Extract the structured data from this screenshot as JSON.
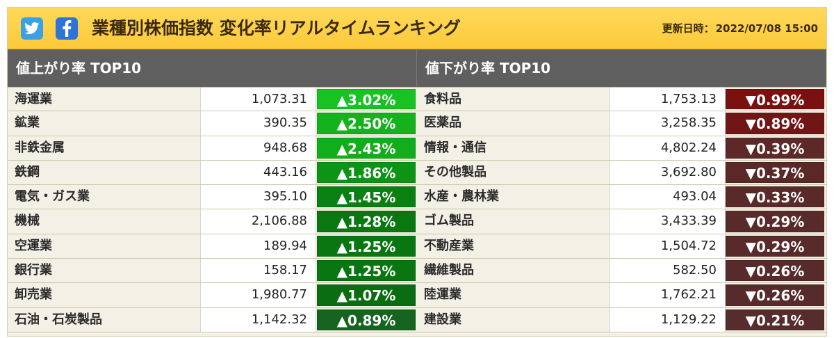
{
  "header": {
    "title": "業種別株価指数 変化率リアルタイムランキング",
    "updated_label": "更新日時：",
    "updated_value": "2022/07/08 15:00",
    "twitter_icon": "twitter-icon",
    "facebook_icon": "facebook-icon"
  },
  "gainers": {
    "title": "値上がり率 TOP10",
    "rows": [
      {
        "name": "海運業",
        "value": "1,073.31",
        "change": "▲3.02%",
        "color": "#17c222"
      },
      {
        "name": "鉱業",
        "value": "390.35",
        "change": "▲2.50%",
        "color": "#14b21c"
      },
      {
        "name": "非鉄金属",
        "value": "948.68",
        "change": "▲2.43%",
        "color": "#12ad1a"
      },
      {
        "name": "鉄鋼",
        "value": "443.16",
        "change": "▲1.86%",
        "color": "#0e9415"
      },
      {
        "name": "電気・ガス業",
        "value": "395.10",
        "change": "▲1.45%",
        "color": "#0b8012"
      },
      {
        "name": "機械",
        "value": "2,106.88",
        "change": "▲1.28%",
        "color": "#0a7811"
      },
      {
        "name": "空運業",
        "value": "189.94",
        "change": "▲1.25%",
        "color": "#0a7611"
      },
      {
        "name": "銀行業",
        "value": "158.17",
        "change": "▲1.25%",
        "color": "#0a7611"
      },
      {
        "name": "卸売業",
        "value": "1,980.77",
        "change": "▲1.07%",
        "color": "#0b6d12"
      },
      {
        "name": "石油・石炭製品",
        "value": "1,142.32",
        "change": "▲0.89%",
        "color": "#176420"
      }
    ]
  },
  "losers": {
    "title": "値下がり率 TOP10",
    "rows": [
      {
        "name": "食料品",
        "value": "1,753.13",
        "change": "▼0.99%",
        "color": "#7a1010"
      },
      {
        "name": "医薬品",
        "value": "3,258.35",
        "change": "▼0.89%",
        "color": "#701616"
      },
      {
        "name": "情報・通信",
        "value": "4,802.24",
        "change": "▼0.39%",
        "color": "#5c2828"
      },
      {
        "name": "その他製品",
        "value": "3,692.80",
        "change": "▼0.37%",
        "color": "#5b2828"
      },
      {
        "name": "水産・農林業",
        "value": "493.04",
        "change": "▼0.33%",
        "color": "#5a2929"
      },
      {
        "name": "ゴム製品",
        "value": "3,433.39",
        "change": "▼0.29%",
        "color": "#582a2a"
      },
      {
        "name": "不動産業",
        "value": "1,504.72",
        "change": "▼0.29%",
        "color": "#582a2a"
      },
      {
        "name": "繊維製品",
        "value": "582.50",
        "change": "▼0.26%",
        "color": "#572b2b"
      },
      {
        "name": "陸運業",
        "value": "1,762.21",
        "change": "▼0.26%",
        "color": "#572b2b"
      },
      {
        "name": "建設業",
        "value": "1,129.22",
        "change": "▼0.21%",
        "color": "#562c2c"
      }
    ]
  }
}
